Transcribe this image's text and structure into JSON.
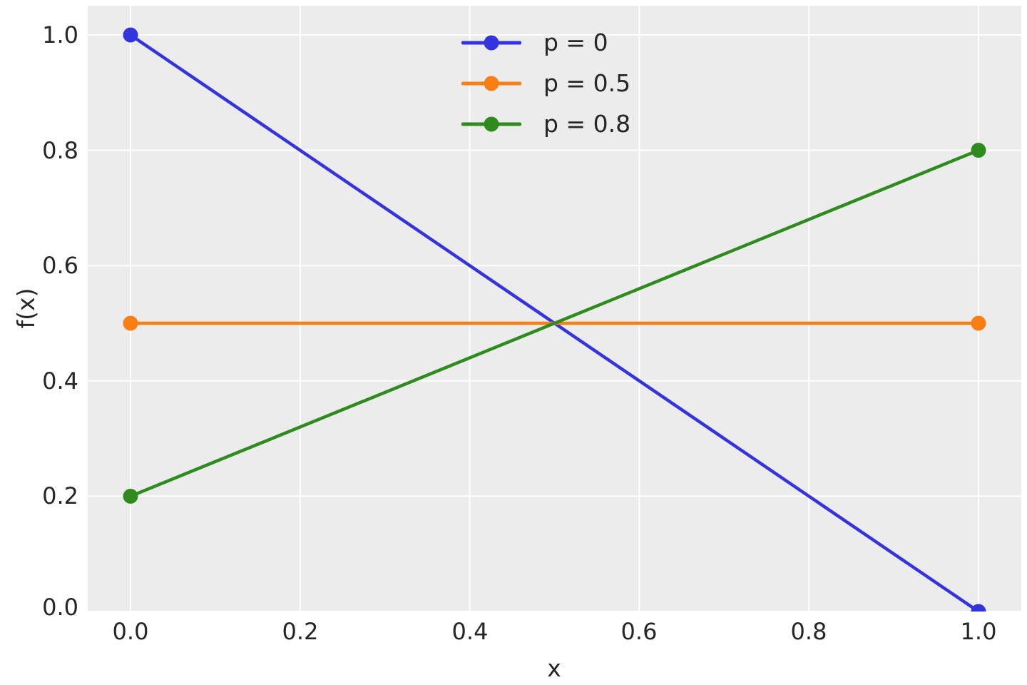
{
  "chart_data": {
    "type": "line",
    "title": "",
    "xlabel": "x",
    "ylabel": "f(x)",
    "xlim": [
      -0.05,
      1.05
    ],
    "ylim": [
      0,
      1.05
    ],
    "grid": true,
    "grid_color": "#ffffff",
    "plot_background": "#ececec",
    "figure_background": "#ffffff",
    "text_color": "#262626",
    "legend_position": "upper center",
    "x_ticks": [
      0.0,
      0.2,
      0.4,
      0.6,
      0.8,
      1.0
    ],
    "x_tick_labels": [
      "0.0",
      "0.2",
      "0.4",
      "0.6",
      "0.8",
      "1.0"
    ],
    "y_ticks": [
      0.0,
      0.2,
      0.4,
      0.6,
      0.8,
      1.0
    ],
    "y_tick_labels": [
      "0.0",
      "0.2",
      "0.4",
      "0.6",
      "0.8",
      "1.0"
    ],
    "series": [
      {
        "name": "p = 0",
        "color": "#3333e0",
        "marker": "circle",
        "x": [
          0,
          1
        ],
        "y": [
          1.0,
          0.0
        ]
      },
      {
        "name": "p = 0.5",
        "color": "#f97e14",
        "marker": "circle",
        "x": [
          0,
          1
        ],
        "y": [
          0.5,
          0.5
        ]
      },
      {
        "name": "p = 0.8",
        "color": "#2e8b1d",
        "marker": "circle",
        "x": [
          0,
          1
        ],
        "y": [
          0.2,
          0.8
        ]
      }
    ]
  }
}
